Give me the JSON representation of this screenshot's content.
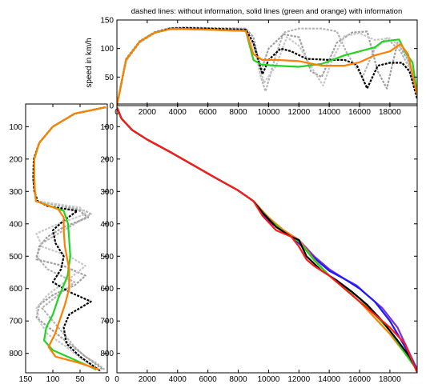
{
  "chart_data": [
    {
      "type": "line",
      "title": "dashed lines: without information, solid lines (green and orange) with information",
      "xlabel": "",
      "ylabel": "speed in km/h",
      "xlim": [
        0,
        19800
      ],
      "ylim": [
        0,
        150
      ],
      "xticks": [
        0,
        2000,
        4000,
        6000,
        8000,
        10000,
        12000,
        14000,
        16000,
        18000
      ],
      "yticks": [
        0,
        50,
        100,
        150
      ],
      "grid": false,
      "series": [
        {
          "style": "dashed",
          "color": "#b4b4b4",
          "x": [
            0,
            600,
            1500,
            2500,
            3500,
            4500,
            6000,
            8500,
            9000,
            9500,
            9800,
            10500,
            11000,
            12000,
            13500,
            14500,
            15200,
            16200,
            17000,
            17800,
            18700,
            19400,
            19800
          ],
          "y": [
            0,
            80,
            112,
            128,
            135,
            136,
            135,
            134,
            110,
            50,
            25,
            90,
            128,
            135,
            135,
            130,
            90,
            50,
            100,
            118,
            95,
            60,
            15
          ]
        },
        {
          "style": "dashed",
          "color": "#a0a0a0",
          "x": [
            0,
            600,
            1500,
            2500,
            3500,
            4500,
            6000,
            8500,
            9000,
            9500,
            10000,
            11000,
            12000,
            12800,
            13500,
            14500,
            15500,
            16500,
            17200,
            17800,
            18500,
            19200,
            19800
          ],
          "y": [
            0,
            82,
            113,
            129,
            136,
            137,
            136,
            135,
            120,
            60,
            100,
            125,
            120,
            60,
            50,
            110,
            128,
            130,
            60,
            30,
            110,
            80,
            20
          ]
        },
        {
          "style": "dashed",
          "color": "#c8c8c8",
          "x": [
            0,
            600,
            1500,
            2500,
            3500,
            4500,
            6000,
            8500,
            9200,
            9700,
            10500,
            11200,
            12000,
            13000,
            13600,
            14200,
            15000,
            16000,
            17000,
            18000,
            19000,
            19500,
            19800
          ],
          "y": [
            0,
            78,
            110,
            127,
            134,
            135,
            134,
            133,
            90,
            40,
            70,
            120,
            105,
            60,
            35,
            80,
            122,
            127,
            115,
            118,
            95,
            50,
            10
          ]
        },
        {
          "style": "dashed",
          "color": "#000000",
          "x": [
            0,
            600,
            1500,
            2500,
            3500,
            4500,
            6000,
            8500,
            9000,
            9600,
            10000,
            10800,
            11500,
            12500,
            14000,
            15000,
            15800,
            16500,
            17200,
            18000,
            18800,
            19300,
            19800
          ],
          "y": [
            0,
            80,
            112,
            128,
            135,
            136,
            135,
            133,
            110,
            55,
            80,
            100,
            95,
            82,
            80,
            80,
            72,
            30,
            70,
            75,
            75,
            60,
            12
          ]
        },
        {
          "style": "solid",
          "color": "#22d422",
          "x": [
            0,
            600,
            1500,
            2500,
            3500,
            4500,
            6000,
            8500,
            9000,
            9500,
            10500,
            12000,
            13500,
            15000,
            16000,
            17000,
            17500,
            18000,
            18600,
            19000,
            19500,
            19800
          ],
          "y": [
            0,
            80,
            112,
            128,
            134,
            134,
            133,
            131,
            80,
            72,
            70,
            68,
            73,
            88,
            95,
            102,
            112,
            114,
            116,
            95,
            75,
            20
          ]
        },
        {
          "style": "solid",
          "color": "#ff8000",
          "x": [
            0,
            600,
            1500,
            2500,
            3500,
            4500,
            6000,
            8500,
            9000,
            9600,
            10500,
            12000,
            13500,
            15000,
            16000,
            17000,
            18000,
            18700,
            19200,
            19800
          ],
          "y": [
            0,
            80,
            112,
            128,
            134,
            134,
            133,
            131,
            90,
            80,
            80,
            78,
            70,
            70,
            76,
            88,
            95,
            108,
            90,
            18
          ]
        }
      ]
    },
    {
      "type": "line",
      "title": "",
      "xlabel": "",
      "ylabel": "",
      "xlim": [
        150,
        0
      ],
      "ylim": [
        860,
        30
      ],
      "xticks": [
        150,
        100,
        50,
        0
      ],
      "yticks": [
        100,
        200,
        300,
        400,
        500,
        600,
        700,
        800
      ],
      "grid": false,
      "series": [
        {
          "style": "dashed",
          "color": "#b4b4b4",
          "x": [
            3,
            60,
            100,
            125,
            135,
            136,
            134,
            128,
            40,
            30,
            60,
            90,
            120,
            130,
            110,
            60,
            90,
            120,
            100,
            80,
            60,
            40,
            20,
            5
          ],
          "y": [
            40,
            60,
            100,
            150,
            200,
            260,
            300,
            330,
            360,
            370,
            400,
            430,
            460,
            500,
            540,
            580,
            620,
            660,
            700,
            740,
            780,
            810,
            830,
            850
          ]
        },
        {
          "style": "dashed",
          "color": "#a0a0a0",
          "x": [
            3,
            60,
            100,
            125,
            135,
            136,
            134,
            128,
            55,
            35,
            80,
            110,
            125,
            130,
            80,
            40,
            60,
            100,
            125,
            130,
            100,
            70,
            40,
            8
          ],
          "y": [
            40,
            60,
            100,
            150,
            200,
            260,
            300,
            330,
            355,
            380,
            410,
            440,
            470,
            510,
            530,
            560,
            590,
            620,
            650,
            690,
            730,
            770,
            810,
            850
          ]
        },
        {
          "style": "dashed",
          "color": "#c8c8c8",
          "x": [
            3,
            60,
            100,
            125,
            135,
            136,
            134,
            128,
            50,
            40,
            90,
            130,
            120,
            70,
            40,
            70,
            110,
            130,
            125,
            110,
            75,
            45,
            12
          ],
          "y": [
            40,
            60,
            100,
            150,
            200,
            260,
            300,
            330,
            350,
            370,
            400,
            430,
            470,
            500,
            530,
            570,
            620,
            660,
            700,
            740,
            780,
            820,
            855
          ]
        },
        {
          "style": "dashed",
          "color": "#000000",
          "x": [
            3,
            60,
            100,
            125,
            135,
            136,
            134,
            128,
            110,
            55,
            80,
            100,
            95,
            80,
            85,
            100,
            70,
            30,
            70,
            80,
            75,
            50,
            12
          ],
          "y": [
            40,
            60,
            100,
            150,
            200,
            260,
            300,
            330,
            345,
            360,
            390,
            420,
            460,
            500,
            540,
            580,
            610,
            640,
            680,
            720,
            770,
            810,
            855
          ]
        },
        {
          "style": "solid",
          "color": "#22d422",
          "x": [
            3,
            60,
            100,
            125,
            134,
            134,
            133,
            131,
            80,
            72,
            70,
            68,
            73,
            90,
            100,
            112,
            116,
            100,
            60,
            20
          ],
          "y": [
            40,
            60,
            100,
            150,
            200,
            260,
            300,
            330,
            360,
            400,
            450,
            500,
            560,
            630,
            680,
            720,
            760,
            790,
            820,
            850
          ]
        },
        {
          "style": "solid",
          "color": "#ff8000",
          "x": [
            3,
            60,
            100,
            125,
            134,
            134,
            133,
            131,
            90,
            80,
            80,
            78,
            70,
            70,
            78,
            88,
            96,
            108,
            95,
            50,
            15
          ],
          "y": [
            40,
            60,
            100,
            150,
            200,
            260,
            300,
            330,
            355,
            380,
            420,
            470,
            540,
            600,
            650,
            700,
            740,
            780,
            810,
            830,
            850
          ]
        }
      ]
    },
    {
      "type": "line",
      "title": "",
      "xlabel": "",
      "ylabel": "",
      "xlim": [
        0,
        19800
      ],
      "ylim": [
        860,
        30
      ],
      "xticks": [
        0,
        2000,
        4000,
        6000,
        8000,
        10000,
        12000,
        14000,
        16000,
        18000
      ],
      "yticks": [
        100,
        200,
        300,
        400,
        500,
        600,
        700,
        800
      ],
      "grid": false,
      "series": [
        {
          "color": "#7b2fd6",
          "x": [
            0,
            300,
            1000,
            2000,
            3500,
            5000,
            6500,
            8000,
            9000,
            10000,
            11000,
            12000,
            13000,
            14000,
            15000,
            15800,
            16500,
            17500,
            18500,
            19300,
            19800
          ],
          "y": [
            40,
            75,
            110,
            140,
            178,
            218,
            258,
            297,
            330,
            395,
            420,
            450,
            500,
            540,
            570,
            590,
            620,
            660,
            720,
            800,
            850
          ]
        },
        {
          "color": "#1a1aff",
          "x": [
            0,
            300,
            1000,
            2000,
            3500,
            5000,
            6500,
            8000,
            9000,
            10000,
            11000,
            12000,
            13000,
            14000,
            15000,
            16000,
            17000,
            18000,
            19000,
            19800
          ],
          "y": [
            40,
            75,
            110,
            140,
            178,
            218,
            258,
            297,
            330,
            390,
            420,
            460,
            505,
            545,
            570,
            600,
            640,
            700,
            780,
            850
          ]
        },
        {
          "color": "#ff8000",
          "x": [
            0,
            300,
            1000,
            2000,
            3500,
            5000,
            6500,
            8000,
            9000,
            10000,
            11000,
            12000,
            13000,
            14000,
            15000,
            16000,
            17000,
            18000,
            19000,
            19800
          ],
          "y": [
            40,
            75,
            110,
            140,
            178,
            218,
            258,
            297,
            330,
            380,
            420,
            450,
            510,
            560,
            600,
            640,
            690,
            740,
            800,
            850
          ]
        },
        {
          "color": "#22d422",
          "x": [
            0,
            300,
            1000,
            2000,
            3500,
            5000,
            6500,
            8000,
            9000,
            10000,
            11000,
            12000,
            13000,
            14000,
            15000,
            16000,
            17000,
            18000,
            19000,
            19800
          ],
          "y": [
            40,
            75,
            110,
            140,
            178,
            218,
            258,
            297,
            330,
            385,
            425,
            455,
            512,
            560,
            595,
            630,
            680,
            730,
            800,
            852
          ]
        },
        {
          "color": "#000000",
          "x": [
            0,
            300,
            1000,
            2000,
            3500,
            5000,
            6500,
            8000,
            9000,
            9600,
            10500,
            11500,
            12000,
            12500,
            13500,
            14500,
            15500,
            16500,
            17500,
            18500,
            19300,
            19800
          ],
          "y": [
            40,
            75,
            110,
            140,
            178,
            218,
            258,
            297,
            330,
            365,
            410,
            440,
            450,
            500,
            545,
            575,
            610,
            650,
            700,
            760,
            810,
            855
          ]
        },
        {
          "color": "#ff1a1a",
          "x": [
            0,
            300,
            1000,
            2000,
            3500,
            5000,
            6500,
            8000,
            9000,
            9600,
            10500,
            11500,
            12000,
            12500,
            13000,
            14000,
            15000,
            16000,
            17000,
            18000,
            19000,
            19800
          ],
          "y": [
            40,
            75,
            110,
            140,
            178,
            218,
            258,
            297,
            330,
            375,
            420,
            440,
            470,
            510,
            530,
            560,
            600,
            640,
            680,
            720,
            770,
            860
          ]
        }
      ]
    }
  ]
}
